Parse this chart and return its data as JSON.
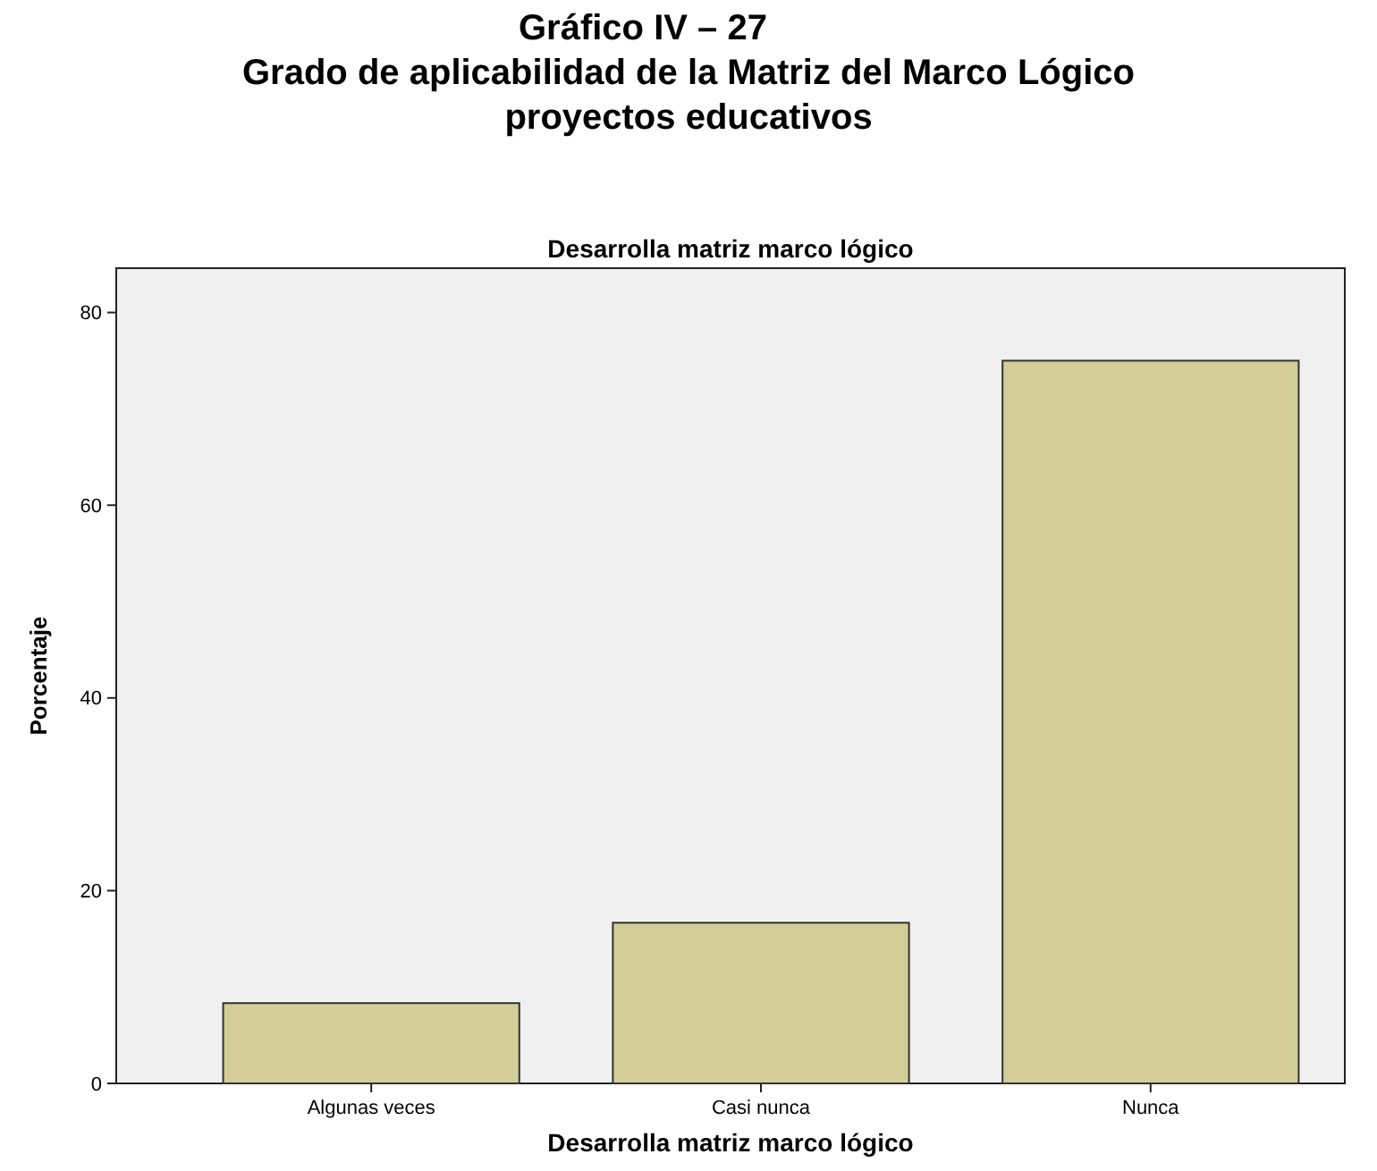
{
  "chart_data": {
    "type": "bar",
    "title": "Gráfico  IV – 27\nGrado  de aplicabilidad de la Matriz del Marco Lógico\nproyectos educativos",
    "annotations": [
      "Desarrolla matriz marco lógico"
    ],
    "xlabel": "Desarrolla matriz marco lógico",
    "ylabel": "Porcentaje",
    "categories": [
      "Algunas veces",
      "Casi nunca",
      "Nunca"
    ],
    "values": [
      8.33,
      16.67,
      75
    ],
    "color": "#d3ce98",
    "ylim": [
      0,
      84.6
    ],
    "yticks": [
      0,
      20,
      40,
      60,
      80
    ],
    "grid": false
  }
}
